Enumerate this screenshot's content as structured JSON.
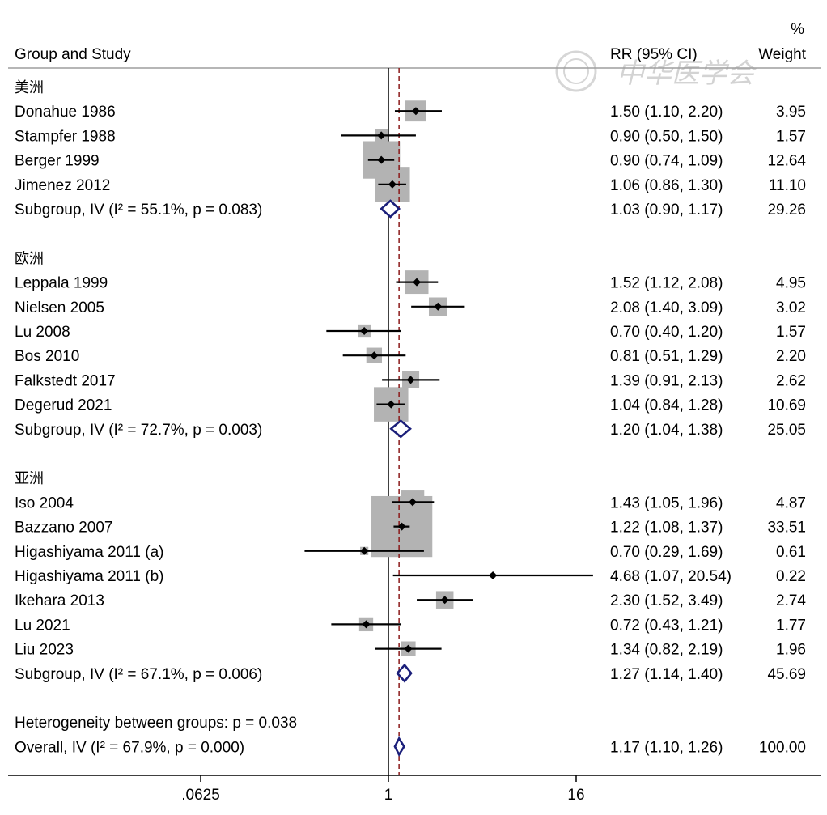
{
  "header": {
    "col_study": "Group and Study",
    "col_ci": "RR (95% CI)",
    "col_weight_top": "%",
    "col_weight": "Weight"
  },
  "watermark": "中华医学会",
  "colors": {
    "box": "#b3b3b3",
    "diamond": "#1b1f7a",
    "null_line": "#000000",
    "overall_line": "#8b1a1a",
    "separator": "#9e9e9e"
  },
  "chart_data": {
    "type": "forest",
    "x_scale": "log",
    "x_ticks": [
      {
        "value": 0.0625,
        "label": ".0625"
      },
      {
        "value": 1,
        "label": "1"
      },
      {
        "value": 16,
        "label": "16"
      }
    ],
    "null_value": 1,
    "overall_line_value": 1.17,
    "rows": [
      {
        "kind": "group",
        "label": "美洲"
      },
      {
        "kind": "study",
        "label": "Donahue 1986",
        "rr": 1.5,
        "lo": 1.1,
        "hi": 2.2,
        "ci_text": "1.50 (1.10, 2.20)",
        "weight": 3.95,
        "weight_text": "3.95"
      },
      {
        "kind": "study",
        "label": "Stampfer 1988",
        "rr": 0.9,
        "lo": 0.5,
        "hi": 1.5,
        "ci_text": "0.90 (0.50, 1.50)",
        "weight": 1.57,
        "weight_text": "1.57"
      },
      {
        "kind": "study",
        "label": "Berger 1999",
        "rr": 0.9,
        "lo": 0.74,
        "hi": 1.09,
        "ci_text": "0.90 (0.74, 1.09)",
        "weight": 12.64,
        "weight_text": "12.64"
      },
      {
        "kind": "study",
        "label": "Jimenez 2012",
        "rr": 1.06,
        "lo": 0.86,
        "hi": 1.3,
        "ci_text": "1.06 (0.86, 1.30)",
        "weight": 11.1,
        "weight_text": "11.10"
      },
      {
        "kind": "subgroup",
        "label": "Subgroup, IV (I² = 55.1%, p = 0.083)",
        "rr": 1.03,
        "lo": 0.9,
        "hi": 1.17,
        "ci_text": "1.03 (0.90, 1.17)",
        "weight": 29.26,
        "weight_text": "29.26"
      },
      {
        "kind": "blank"
      },
      {
        "kind": "group",
        "label": "欧洲"
      },
      {
        "kind": "study",
        "label": "Leppala 1999",
        "rr": 1.52,
        "lo": 1.12,
        "hi": 2.08,
        "ci_text": "1.52 (1.12, 2.08)",
        "weight": 4.95,
        "weight_text": "4.95"
      },
      {
        "kind": "study",
        "label": "Nielsen 2005",
        "rr": 2.08,
        "lo": 1.4,
        "hi": 3.09,
        "ci_text": "2.08 (1.40, 3.09)",
        "weight": 3.02,
        "weight_text": "3.02"
      },
      {
        "kind": "study",
        "label": "Lu 2008",
        "rr": 0.7,
        "lo": 0.4,
        "hi": 1.2,
        "ci_text": "0.70 (0.40, 1.20)",
        "weight": 1.57,
        "weight_text": "1.57"
      },
      {
        "kind": "study",
        "label": "Bos 2010",
        "rr": 0.81,
        "lo": 0.51,
        "hi": 1.29,
        "ci_text": "0.81 (0.51, 1.29)",
        "weight": 2.2,
        "weight_text": "2.20"
      },
      {
        "kind": "study",
        "label": "Falkstedt 2017",
        "rr": 1.39,
        "lo": 0.91,
        "hi": 2.13,
        "ci_text": "1.39 (0.91, 2.13)",
        "weight": 2.62,
        "weight_text": "2.62"
      },
      {
        "kind": "study",
        "label": "Degerud 2021",
        "rr": 1.04,
        "lo": 0.84,
        "hi": 1.28,
        "ci_text": "1.04 (0.84, 1.28)",
        "weight": 10.69,
        "weight_text": "10.69"
      },
      {
        "kind": "subgroup",
        "label": "Subgroup, IV (I² = 72.7%, p = 0.003)",
        "rr": 1.2,
        "lo": 1.04,
        "hi": 1.38,
        "ci_text": "1.20 (1.04, 1.38)",
        "weight": 25.05,
        "weight_text": "25.05"
      },
      {
        "kind": "blank"
      },
      {
        "kind": "group",
        "label": "亚洲"
      },
      {
        "kind": "study",
        "label": "Iso 2004",
        "rr": 1.43,
        "lo": 1.05,
        "hi": 1.96,
        "ci_text": "1.43 (1.05, 1.96)",
        "weight": 4.87,
        "weight_text": "4.87"
      },
      {
        "kind": "study",
        "label": "Bazzano 2007",
        "rr": 1.22,
        "lo": 1.08,
        "hi": 1.37,
        "ci_text": "1.22 (1.08, 1.37)",
        "weight": 33.51,
        "weight_text": "33.51"
      },
      {
        "kind": "study",
        "label": "Higashiyama 2011 (a)",
        "rr": 0.7,
        "lo": 0.29,
        "hi": 1.69,
        "ci_text": "0.70 (0.29, 1.69)",
        "weight": 0.61,
        "weight_text": "0.61"
      },
      {
        "kind": "study",
        "label": "Higashiyama 2011 (b)",
        "rr": 4.68,
        "lo": 1.07,
        "hi": 20.54,
        "ci_text": "4.68 (1.07, 20.54)",
        "weight": 0.22,
        "weight_text": "0.22"
      },
      {
        "kind": "study",
        "label": "Ikehara 2013",
        "rr": 2.3,
        "lo": 1.52,
        "hi": 3.49,
        "ci_text": "2.30 (1.52, 3.49)",
        "weight": 2.74,
        "weight_text": "2.74"
      },
      {
        "kind": "study",
        "label": "Lu 2021",
        "rr": 0.72,
        "lo": 0.43,
        "hi": 1.21,
        "ci_text": "0.72 (0.43, 1.21)",
        "weight": 1.77,
        "weight_text": "1.77"
      },
      {
        "kind": "study",
        "label": "Liu 2023",
        "rr": 1.34,
        "lo": 0.82,
        "hi": 2.19,
        "ci_text": "1.34 (0.82, 2.19)",
        "weight": 1.96,
        "weight_text": "1.96"
      },
      {
        "kind": "subgroup",
        "label": "Subgroup, IV (I² = 67.1%, p = 0.006)",
        "rr": 1.27,
        "lo": 1.14,
        "hi": 1.4,
        "ci_text": "1.27 (1.14, 1.40)",
        "weight": 45.69,
        "weight_text": "45.69"
      },
      {
        "kind": "blank"
      },
      {
        "kind": "note",
        "label": "Heterogeneity between groups: p = 0.038"
      },
      {
        "kind": "overall",
        "label": "Overall, IV (I² = 67.9%, p = 0.000)",
        "rr": 1.17,
        "lo": 1.1,
        "hi": 1.26,
        "ci_text": "1.17 (1.10, 1.26)",
        "weight": 100.0,
        "weight_text": "100.00"
      }
    ]
  }
}
